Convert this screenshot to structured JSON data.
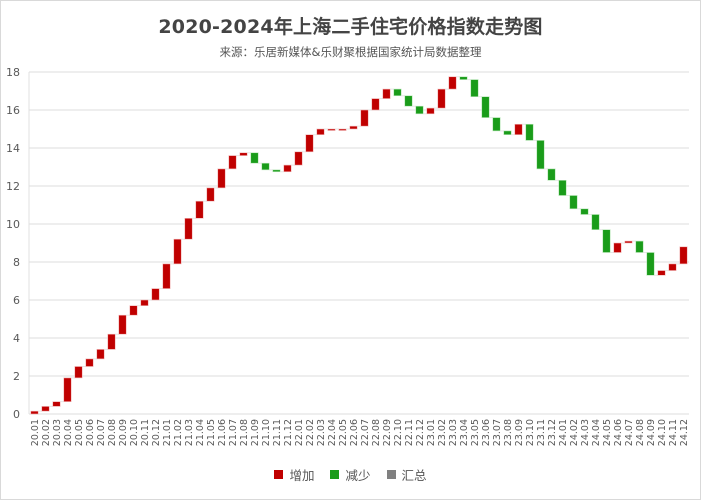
{
  "title": "2020-2024年上海二手住宅价格指数走势图",
  "subtitle": "来源：乐居新媒体&乐财聚根据国家统计局数据整理",
  "colors": {
    "increase": "#c00000",
    "decrease": "#1a9c1a",
    "total": "#808080",
    "grid": "#e3e3e3",
    "axis_text": "#595959"
  },
  "legend": [
    {
      "label": "增加",
      "color": "#c00000"
    },
    {
      "label": "减少",
      "color": "#1a9c1a"
    },
    {
      "label": "汇总",
      "color": "#808080"
    }
  ],
  "chart_data": {
    "type": "waterfall",
    "title": "2020-2024年上海二手住宅价格指数走势图",
    "subtitle": "来源：乐居新媒体&乐财聚根据国家统计局数据整理",
    "xlabel": "",
    "ylabel": "",
    "ylim": [
      0,
      18
    ],
    "yticks": [
      0,
      2,
      4,
      6,
      8,
      10,
      12,
      14,
      16,
      18
    ],
    "grid": true,
    "legend_position": "bottom",
    "legend": [
      "增加",
      "减少",
      "汇总"
    ],
    "categories": [
      "20.01",
      "20.02",
      "20.03",
      "20.04",
      "20.05",
      "20.06",
      "20.07",
      "20.08",
      "20.09",
      "20.10",
      "20.11",
      "20.12",
      "21.01",
      "21.02",
      "21.03",
      "21.04",
      "21.05",
      "21.06",
      "21.07",
      "21.08",
      "21.09",
      "21.10",
      "21.11",
      "21.12",
      "22.01",
      "22.02",
      "22.03",
      "22.04",
      "22.05",
      "22.06",
      "22.07",
      "22.08",
      "22.09",
      "22.10",
      "22.11",
      "22.12",
      "23.01",
      "23.02",
      "23.03",
      "23.04",
      "23.05",
      "23.06",
      "23.07",
      "23.08",
      "23.09",
      "23.10",
      "23.11",
      "23.12",
      "24.01",
      "24.02",
      "24.03",
      "24.04",
      "24.05",
      "24.06",
      "24.07",
      "24.08",
      "24.09",
      "24.10",
      "24.11",
      "24.12"
    ],
    "cumulative": [
      0.15,
      0.4,
      0.65,
      1.9,
      2.5,
      2.9,
      3.4,
      4.2,
      5.2,
      5.7,
      6.0,
      6.6,
      7.9,
      9.2,
      10.3,
      11.2,
      11.9,
      12.9,
      13.6,
      13.75,
      13.2,
      12.85,
      12.75,
      13.1,
      13.8,
      14.7,
      15.0,
      15.0,
      15.0,
      15.15,
      16.0,
      16.6,
      17.1,
      16.75,
      16.2,
      15.8,
      16.1,
      17.1,
      17.75,
      17.6,
      16.7,
      15.6,
      14.9,
      14.7,
      15.25,
      14.4,
      12.9,
      12.3,
      11.5,
      10.8,
      10.5,
      9.7,
      8.5,
      9.0,
      9.1,
      8.5,
      7.3,
      7.55,
      7.9,
      8.8
    ]
  }
}
